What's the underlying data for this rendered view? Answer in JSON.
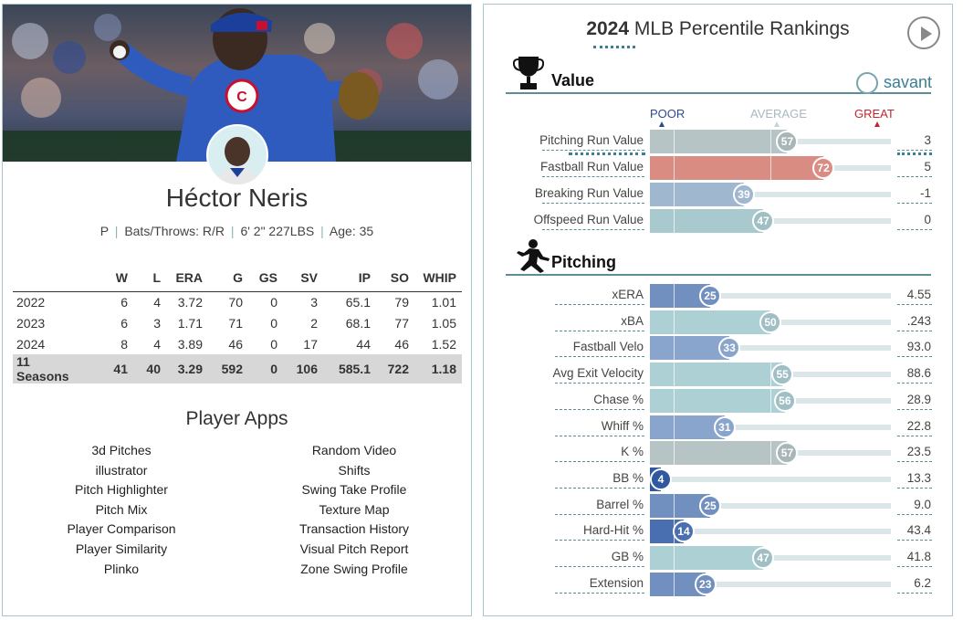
{
  "player": {
    "name": "Héctor Neris",
    "position": "P",
    "bats_throws": "Bats/Throws: R/R",
    "height_weight": "6' 2\" 227LBS",
    "age": "Age: 35",
    "separator": "|"
  },
  "stats_table": {
    "headers": [
      "",
      "W",
      "L",
      "ERA",
      "G",
      "GS",
      "SV",
      "IP",
      "SO",
      "WHIP"
    ],
    "rows": [
      [
        "2022",
        "6",
        "4",
        "3.72",
        "70",
        "0",
        "3",
        "65.1",
        "79",
        "1.01"
      ],
      [
        "2023",
        "6",
        "3",
        "1.71",
        "71",
        "0",
        "2",
        "68.1",
        "77",
        "1.05"
      ],
      [
        "2024",
        "8",
        "4",
        "3.89",
        "46",
        "0",
        "17",
        "44",
        "46",
        "1.52"
      ]
    ],
    "total": [
      "11 Seasons",
      "41",
      "40",
      "3.29",
      "592",
      "0",
      "106",
      "585.1",
      "722",
      "1.18"
    ]
  },
  "apps": {
    "title": "Player Apps",
    "left": [
      "3d Pitches",
      "illustrator",
      "Pitch Highlighter",
      "Pitch Mix",
      "Player Comparison",
      "Player Similarity",
      "Plinko"
    ],
    "right": [
      "Random Video",
      "Shifts",
      "Swing Take Profile",
      "Texture Map",
      "Transaction History",
      "Visual Pitch Report",
      "Zone Swing Profile"
    ]
  },
  "rankings": {
    "year": "2024",
    "title": "MLB Percentile Rankings",
    "savant_label": "savant",
    "scale": {
      "poor": "POOR",
      "average": "AVERAGE",
      "great": "GREAT"
    },
    "value_section": {
      "title": "Value",
      "metrics": [
        {
          "label": "Pitching Run Value",
          "percentile": 57,
          "value": "3",
          "color": "#b7c4c6"
        },
        {
          "label": "Fastball Run Value",
          "percentile": 72,
          "value": "5",
          "color": "#d98c82"
        },
        {
          "label": "Breaking Run Value",
          "percentile": 39,
          "value": "-1",
          "color": "#9fb7cf"
        },
        {
          "label": "Offspeed Run Value",
          "percentile": 47,
          "value": "0",
          "color": "#a8c9cd"
        }
      ]
    },
    "pitching_section": {
      "title": "Pitching",
      "metrics": [
        {
          "label": "xERA",
          "percentile": 25,
          "value": "4.55",
          "color": "#7190c0"
        },
        {
          "label": "xBA",
          "percentile": 50,
          "value": ".243",
          "color": "#acd0d4"
        },
        {
          "label": "Fastball Velo",
          "percentile": 33,
          "value": "93.0",
          "color": "#8aa5cd"
        },
        {
          "label": "Avg Exit Velocity",
          "percentile": 55,
          "value": "88.6",
          "color": "#acd0d4"
        },
        {
          "label": "Chase %",
          "percentile": 56,
          "value": "28.9",
          "color": "#acd0d4"
        },
        {
          "label": "Whiff %",
          "percentile": 31,
          "value": "22.8",
          "color": "#8aa5cd"
        },
        {
          "label": "K %",
          "percentile": 57,
          "value": "23.5",
          "color": "#b7c4c6"
        },
        {
          "label": "BB %",
          "percentile": 4,
          "value": "13.3",
          "color": "#2f58a0"
        },
        {
          "label": "Barrel %",
          "percentile": 25,
          "value": "9.0",
          "color": "#7190c0"
        },
        {
          "label": "Hard-Hit %",
          "percentile": 14,
          "value": "43.4",
          "color": "#4a6fb0"
        },
        {
          "label": "GB %",
          "percentile": 47,
          "value": "41.8",
          "color": "#acd0d4"
        },
        {
          "label": "Extension",
          "percentile": 23,
          "value": "6.2",
          "color": "#7190c0"
        }
      ]
    }
  }
}
